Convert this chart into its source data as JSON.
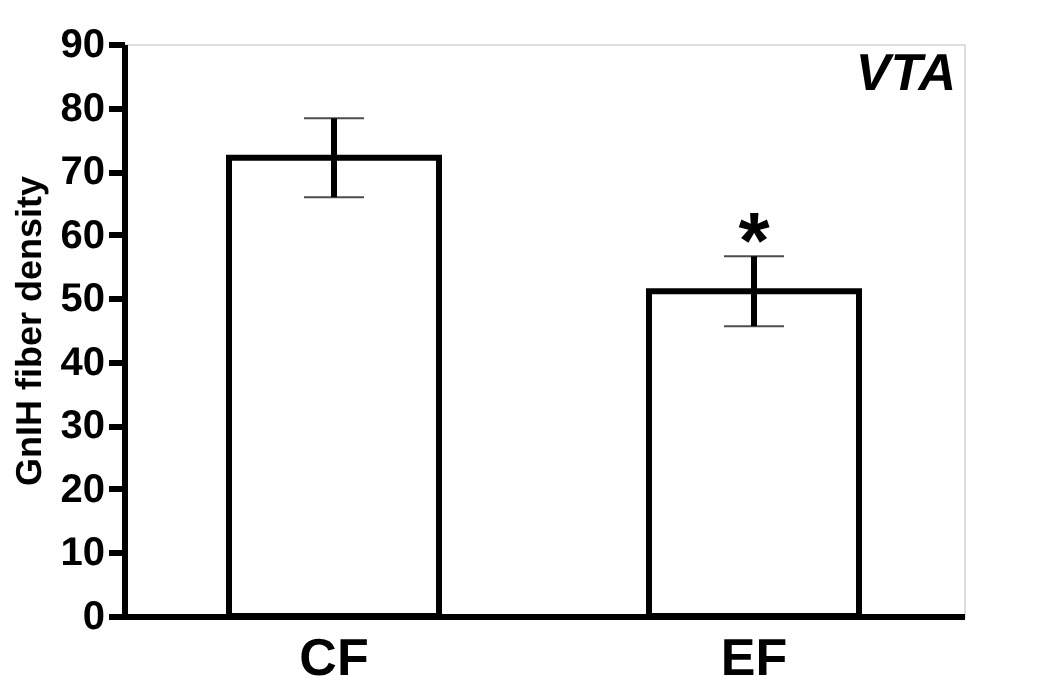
{
  "chart_data": {
    "type": "bar",
    "title": "VTA",
    "ylabel": "GnIH fiber density",
    "categories": [
      "CF",
      "EF"
    ],
    "values": [
      72.1,
      51.1
    ],
    "errors": [
      6.2,
      5.5
    ],
    "color": "#ffffff",
    "ylim": [
      0,
      90
    ],
    "yticks": [
      0,
      10,
      20,
      30,
      40,
      50,
      60,
      70,
      80,
      90
    ],
    "annotations": [
      "*"
    ],
    "grid": false
  }
}
